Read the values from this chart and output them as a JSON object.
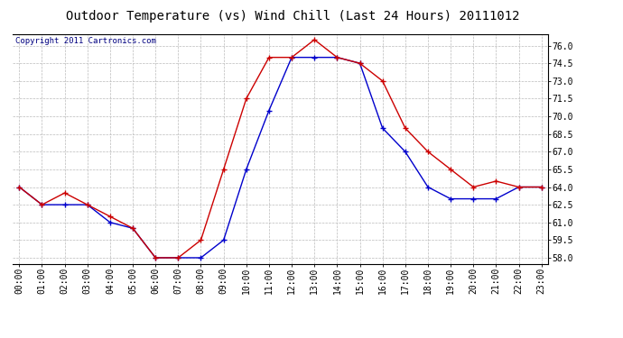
{
  "title": "Outdoor Temperature (vs) Wind Chill (Last 24 Hours) 20111012",
  "copyright": "Copyright 2011 Cartronics.com",
  "hours": [
    "00:00",
    "01:00",
    "02:00",
    "03:00",
    "04:00",
    "05:00",
    "06:00",
    "07:00",
    "08:00",
    "09:00",
    "10:00",
    "11:00",
    "12:00",
    "13:00",
    "14:00",
    "15:00",
    "16:00",
    "17:00",
    "18:00",
    "19:00",
    "20:00",
    "21:00",
    "22:00",
    "23:00"
  ],
  "outdoor_temp": [
    64.0,
    62.5,
    63.5,
    62.5,
    61.5,
    60.5,
    58.0,
    58.0,
    59.5,
    65.5,
    71.5,
    75.0,
    75.0,
    76.5,
    75.0,
    74.5,
    73.0,
    69.0,
    67.0,
    65.5,
    64.0,
    64.5,
    64.0,
    64.0
  ],
  "wind_chill": [
    64.0,
    62.5,
    62.5,
    62.5,
    61.0,
    60.5,
    58.0,
    58.0,
    58.0,
    59.5,
    65.5,
    70.5,
    75.0,
    75.0,
    75.0,
    74.5,
    69.0,
    67.0,
    64.0,
    63.0,
    63.0,
    63.0,
    64.0,
    64.0
  ],
  "temp_color": "#cc0000",
  "wind_color": "#0000cc",
  "ylim": [
    57.5,
    77.0
  ],
  "ytick_min": 58.0,
  "ytick_max": 76.5,
  "ytick_step": 1.5,
  "bg_color": "#ffffff",
  "plot_bg_color": "#ffffff",
  "grid_color": "#bbbbbb",
  "title_fontsize": 10,
  "copyright_fontsize": 6.5,
  "tick_fontsize": 7,
  "marker_size": 4,
  "linewidth": 1.0
}
